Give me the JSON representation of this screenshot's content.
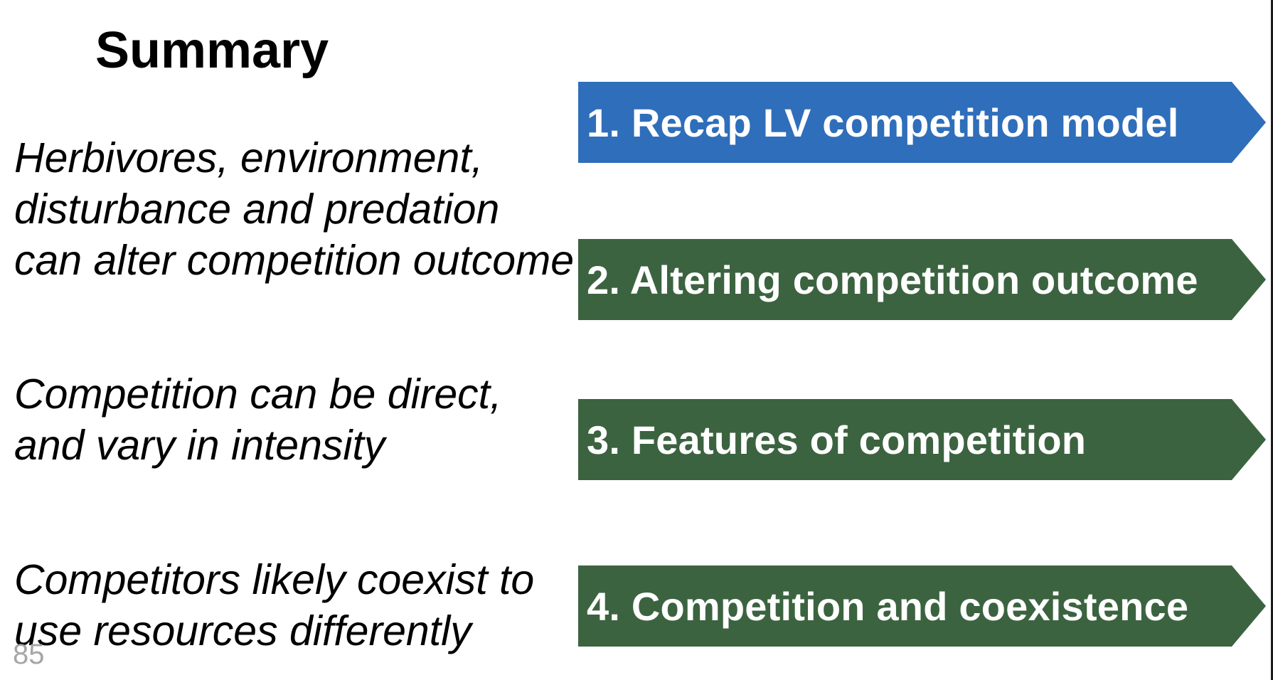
{
  "slide": {
    "title": "Summary",
    "page_number": "85"
  },
  "points": [
    {
      "lines": [
        "Herbivores, environment,",
        "disturbance and predation",
        "can alter competition outcome"
      ]
    },
    {
      "lines": [
        "Competition can be direct,",
        "and vary in intensity"
      ]
    },
    {
      "lines": [
        "Competitors likely coexist to",
        "use resources differently"
      ]
    }
  ],
  "agenda": [
    {
      "label": "1. Recap LV competition model",
      "color": "#2F6EBA"
    },
    {
      "label": "2. Altering competition outcome",
      "color": "#3C6340"
    },
    {
      "label": "3. Features of competition",
      "color": "#3C6340"
    },
    {
      "label": "4. Competition and coexistence",
      "color": "#3C6340"
    }
  ]
}
